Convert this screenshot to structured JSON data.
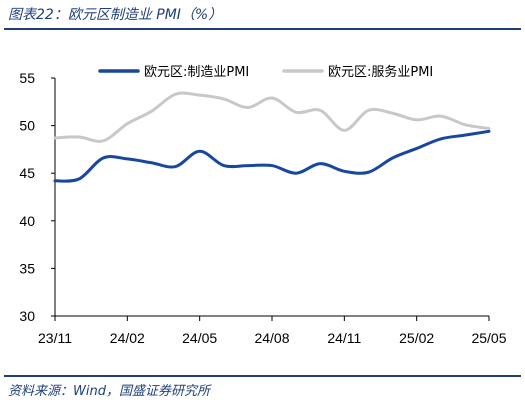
{
  "title": "图表22：欧元区制造业 PMI（%）",
  "source": "资料来源：Wind，国盛证券研究所",
  "chart_data": {
    "type": "line",
    "x_ticks": [
      "23/11",
      "24/02",
      "24/05",
      "24/08",
      "24/11",
      "25/02",
      "25/05"
    ],
    "ylim": [
      30,
      55
    ],
    "y_ticks": [
      30,
      35,
      40,
      45,
      50,
      55
    ],
    "grid": false,
    "legend_position": "top",
    "x": [
      "23/11",
      "23/12",
      "24/01",
      "24/02",
      "24/03",
      "24/04",
      "24/05",
      "24/06",
      "24/07",
      "24/08",
      "24/09",
      "24/10",
      "24/11",
      "24/12",
      "25/01",
      "25/02",
      "25/03",
      "25/04",
      "25/05"
    ],
    "series": [
      {
        "name": "欧元区:制造业PMI",
        "color": "#17479e",
        "values": [
          44.2,
          44.4,
          46.6,
          46.5,
          46.1,
          45.7,
          47.3,
          45.8,
          45.8,
          45.8,
          45.0,
          46.0,
          45.2,
          45.1,
          46.6,
          47.6,
          48.6,
          49.0,
          49.4
        ]
      },
      {
        "name": "欧元区:服务业PMI",
        "color": "#c8c8c8",
        "values": [
          48.7,
          48.8,
          48.4,
          50.2,
          51.5,
          53.3,
          53.2,
          52.8,
          51.9,
          52.9,
          51.4,
          51.6,
          49.5,
          51.6,
          51.3,
          50.6,
          51.0,
          50.1,
          49.7
        ]
      }
    ]
  }
}
